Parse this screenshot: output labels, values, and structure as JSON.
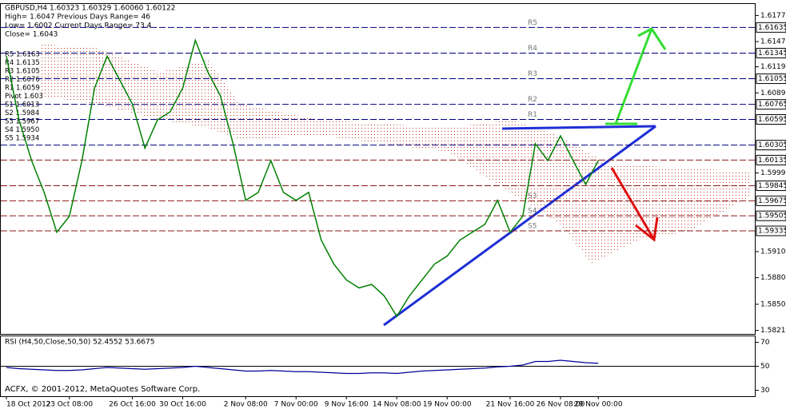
{
  "chart_data": [
    {
      "type": "line",
      "title": "GBPUSD,H4  1.60323 1.60329 1.60060 1.60122",
      "info": [
        "High= 1.6047   Previous Days Range= 46",
        "Low= 1.6002   Current Days Range= 73.4",
        "Close= 1.6043"
      ],
      "pivot_legend": [
        "R5 1.6163",
        "R4 1.6135",
        "R3 1.6105",
        "R2 1.6076",
        "R1 1.6059",
        "Pivot 1.603",
        "S1 1.6013",
        "S2 1.5984",
        "S3 1.5967",
        "S4 1.5950",
        "S5 1.5934"
      ],
      "footer": "ACFX, © 2001-2012, MetaQuotes Software Corp.",
      "categories": [
        "18 Oct 2012",
        null,
        null,
        null,
        null,
        "23 Oct 08:00",
        null,
        null,
        null,
        null,
        "26 Oct 16:00",
        null,
        null,
        null,
        "30 Oct 16:00",
        null,
        null,
        null,
        null,
        "2 Nov 08:00",
        null,
        null,
        null,
        "7 Nov 00:00",
        null,
        null,
        null,
        "9 Nov 16:00",
        null,
        null,
        null,
        "14 Nov 08:00",
        null,
        null,
        null,
        "19 Nov 00:00",
        null,
        null,
        null,
        null,
        "21 Nov 16:00",
        null,
        null,
        null,
        "26 Nov 08:00",
        null,
        null,
        "29 Nov 00:00"
      ],
      "values": [
        1.6131,
        1.6059,
        1.6013,
        1.5977,
        1.5932,
        1.595,
        1.6013,
        1.6095,
        1.6131,
        1.6104,
        1.6077,
        1.6027,
        1.6059,
        1.6068,
        1.6095,
        1.6149,
        1.6113,
        1.6086,
        1.6032,
        1.5968,
        1.5977,
        1.6013,
        1.5977,
        1.5968,
        1.5977,
        1.5923,
        1.5896,
        1.5878,
        1.5869,
        1.5873,
        1.586,
        1.5837,
        1.586,
        1.5878,
        1.5896,
        1.5905,
        1.5923,
        1.5932,
        1.5941,
        1.5968,
        1.5932,
        1.595,
        1.6032,
        1.6013,
        1.6041,
        1.6013,
        1.5986,
        1.6013
      ],
      "color": "#008000",
      "ylim": [
        1.5817,
        1.619
      ],
      "yticks": [
        {
          "value": 1.6177,
          "label": "1.61770"
        },
        1.61475,
        {
          "value": 1.6119,
          "label": "1.61190"
        },
        1.60895,
        {
          "value": 1.5999,
          "label": "1.59990"
        },
        {
          "value": 1.591,
          "label": "1.59100"
        },
        1.58805,
        1.58505,
        {
          "value": 1.5821,
          "label": "1.58210"
        }
      ],
      "levels": [
        {
          "name": "R5",
          "value": 1.61635,
          "color": "#000080"
        },
        {
          "name": "R4",
          "value": 1.61345,
          "color": "#000080"
        },
        {
          "name": "R3",
          "value": 1.61055,
          "color": "#000080"
        },
        {
          "name": "R2",
          "value": 1.60765,
          "color": "#000080"
        },
        {
          "name": "R1",
          "value": 1.60595,
          "color": "#000080"
        },
        {
          "value": 1.60305,
          "color": "#000080"
        },
        {
          "value": 1.60135,
          "color": "#8b1a1a"
        },
        {
          "value": 1.59845,
          "color": "#8b1a1a"
        },
        {
          "name": "S3",
          "value": 1.59675,
          "color": "#8b1a1a"
        },
        {
          "name": "S4",
          "value": 1.59505,
          "color": "#8b1a1a"
        },
        {
          "name": "S5",
          "value": 1.59335,
          "color": "#8b1a1a"
        }
      ]
    },
    {
      "type": "line",
      "title": "RSI (H4,50,Close,50,50) 52.4552 53.6675",
      "values": [
        49,
        48,
        47.5,
        47,
        46.5,
        46.5,
        47,
        48,
        49,
        48.5,
        48,
        47.5,
        48,
        48.5,
        49,
        50,
        49,
        48,
        47,
        46,
        46,
        46.5,
        46,
        45.5,
        45.5,
        45,
        44.5,
        44,
        44,
        44.5,
        44.5,
        44,
        45,
        46,
        46.5,
        47,
        47.5,
        48,
        48.5,
        49.5,
        50,
        51,
        54,
        54,
        55,
        54,
        53,
        52.5
      ],
      "color": "#000099",
      "ylim": [
        25,
        75
      ],
      "yticks": [
        30,
        50,
        70
      ]
    }
  ]
}
